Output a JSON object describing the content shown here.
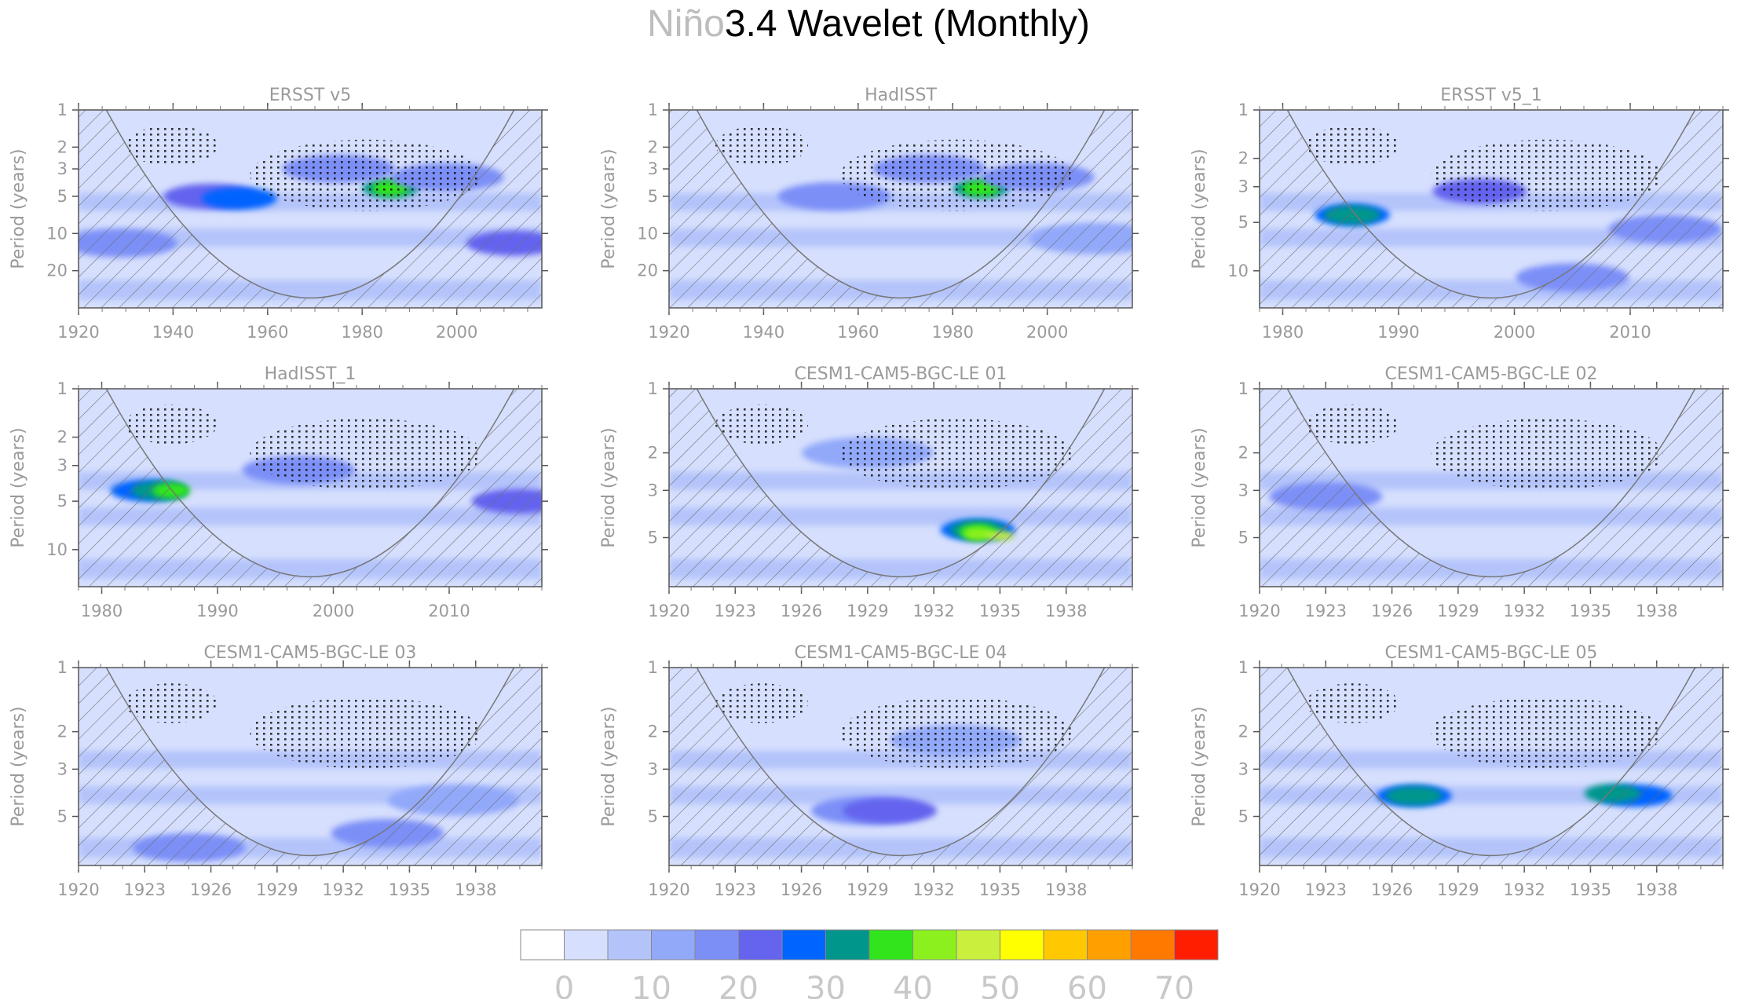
{
  "figure_title_part1": "Niño",
  "figure_title_part2": "3.4 Wavelet (Monthly)",
  "chart_data": [
    {
      "type": "heatmap",
      "title": "ERSST v5",
      "ylabel": "Period (years)",
      "xticks": [
        "1920",
        "1940",
        "1960",
        "1980",
        "2000"
      ],
      "yticks": [
        "1",
        "2",
        "3",
        "5",
        "10",
        "20"
      ],
      "xlim": [
        1920,
        2018
      ],
      "ylim": [
        1,
        40
      ],
      "yscale": "log",
      "blobs": [
        {
          "x": 1948,
          "p": 5,
          "level": 5
        },
        {
          "x": 1954,
          "p": 5.2,
          "level": 6
        },
        {
          "x": 1986,
          "p": 4.3,
          "level": 7
        },
        {
          "x": 1986,
          "p": 4.3,
          "level": 8
        },
        {
          "x": 1929,
          "p": 12,
          "level": 4
        },
        {
          "x": 2012,
          "p": 12,
          "level": 5
        },
        {
          "x": 1998,
          "p": 3.5,
          "level": 4
        },
        {
          "x": 1975,
          "p": 3,
          "level": 4
        }
      ]
    },
    {
      "type": "heatmap",
      "title": "HadISST",
      "ylabel": "Period (years)",
      "xticks": [
        "1920",
        "1940",
        "1960",
        "1980",
        "2000"
      ],
      "yticks": [
        "1",
        "2",
        "3",
        "5",
        "10",
        "20"
      ],
      "xlim": [
        1920,
        2018
      ],
      "ylim": [
        1,
        40
      ],
      "yscale": "log",
      "blobs": [
        {
          "x": 1955,
          "p": 5,
          "level": 4
        },
        {
          "x": 1986,
          "p": 4.3,
          "level": 7
        },
        {
          "x": 1986,
          "p": 4.3,
          "level": 8
        },
        {
          "x": 1998,
          "p": 3.5,
          "level": 4
        },
        {
          "x": 1975,
          "p": 3,
          "level": 4
        },
        {
          "x": 2010,
          "p": 11,
          "level": 3
        }
      ]
    },
    {
      "type": "heatmap",
      "title": "ERSST v5_1",
      "ylabel": "Period (years)",
      "xticks": [
        "1980",
        "1990",
        "2000",
        "2010"
      ],
      "yticks": [
        "1",
        "2",
        "3",
        "5",
        "10"
      ],
      "xlim": [
        1978,
        2018
      ],
      "ylim": [
        1,
        17
      ],
      "yscale": "log",
      "blobs": [
        {
          "x": 1986,
          "p": 4.5,
          "level": 6
        },
        {
          "x": 1986,
          "p": 4.5,
          "level": 7
        },
        {
          "x": 1997,
          "p": 3.2,
          "level": 5
        },
        {
          "x": 2005,
          "p": 11,
          "level": 4
        },
        {
          "x": 2013,
          "p": 5.5,
          "level": 4
        }
      ]
    },
    {
      "type": "heatmap",
      "title": "HadISST_1",
      "ylabel": "Period (years)",
      "xticks": [
        "1980",
        "1990",
        "2000",
        "2010"
      ],
      "yticks": [
        "1",
        "2",
        "3",
        "5",
        "10"
      ],
      "xlim": [
        1978,
        2018
      ],
      "ylim": [
        1,
        17
      ],
      "yscale": "log",
      "blobs": [
        {
          "x": 1984,
          "p": 4.3,
          "level": 6
        },
        {
          "x": 1985,
          "p": 4.3,
          "level": 7
        },
        {
          "x": 1986,
          "p": 4.3,
          "level": 8
        },
        {
          "x": 1997,
          "p": 3.2,
          "level": 4
        },
        {
          "x": 2016,
          "p": 5,
          "level": 5
        }
      ]
    },
    {
      "type": "heatmap",
      "title": "CESM1-CAM5-BGC-LE 01",
      "ylabel": "Period (years)",
      "xticks": [
        "1920",
        "1923",
        "1926",
        "1929",
        "1932",
        "1935",
        "1938"
      ],
      "yticks": [
        "1",
        "2",
        "3",
        "5"
      ],
      "xlim": [
        1920,
        1941
      ],
      "ylim": [
        1,
        8.5
      ],
      "yscale": "log",
      "blobs": [
        {
          "x": 1934,
          "p": 4.6,
          "level": 6
        },
        {
          "x": 1934,
          "p": 4.6,
          "level": 7
        },
        {
          "x": 1934,
          "p": 4.7,
          "level": 8
        },
        {
          "x": 1934,
          "p": 4.8,
          "level": 9
        },
        {
          "x": 1935,
          "p": 4.9,
          "level": 10
        },
        {
          "x": 1929,
          "p": 2,
          "level": 3
        }
      ]
    },
    {
      "type": "heatmap",
      "title": "CESM1-CAM5-BGC-LE 02",
      "ylabel": "Period (years)",
      "xticks": [
        "1920",
        "1923",
        "1926",
        "1929",
        "1932",
        "1935",
        "1938"
      ],
      "yticks": [
        "1",
        "2",
        "3",
        "5"
      ],
      "xlim": [
        1920,
        1941
      ],
      "ylim": [
        1,
        8.5
      ],
      "yscale": "log",
      "blobs": [
        {
          "x": 1923,
          "p": 3.2,
          "level": 4
        }
      ]
    },
    {
      "type": "heatmap",
      "title": "CESM1-CAM5-BGC-LE 03",
      "ylabel": "Period (years)",
      "xticks": [
        "1920",
        "1923",
        "1926",
        "1929",
        "1932",
        "1935",
        "1938"
      ],
      "yticks": [
        "1",
        "2",
        "3",
        "5"
      ],
      "xlim": [
        1920,
        1941
      ],
      "ylim": [
        1,
        8.5
      ],
      "yscale": "log",
      "blobs": [
        {
          "x": 1934,
          "p": 6,
          "level": 4
        },
        {
          "x": 1937,
          "p": 4.2,
          "level": 3
        },
        {
          "x": 1925,
          "p": 7,
          "level": 4
        }
      ]
    },
    {
      "type": "heatmap",
      "title": "CESM1-CAM5-BGC-LE 04",
      "ylabel": "Period (years)",
      "xticks": [
        "1920",
        "1923",
        "1926",
        "1929",
        "1932",
        "1935",
        "1938"
      ],
      "yticks": [
        "1",
        "2",
        "3",
        "5"
      ],
      "xlim": [
        1920,
        1941
      ],
      "ylim": [
        1,
        8.5
      ],
      "yscale": "log",
      "blobs": [
        {
          "x": 1929,
          "p": 4.7,
          "level": 4
        },
        {
          "x": 1930,
          "p": 4.7,
          "level": 5
        },
        {
          "x": 1933,
          "p": 2.2,
          "level": 3
        }
      ]
    },
    {
      "type": "heatmap",
      "title": "CESM1-CAM5-BGC-LE 05",
      "ylabel": "Period (years)",
      "xticks": [
        "1920",
        "1923",
        "1926",
        "1929",
        "1932",
        "1935",
        "1938"
      ],
      "yticks": [
        "1",
        "2",
        "3",
        "5"
      ],
      "xlim": [
        1920,
        1941
      ],
      "ylim": [
        1,
        8.5
      ],
      "yscale": "log",
      "blobs": [
        {
          "x": 1927,
          "p": 4,
          "level": 6
        },
        {
          "x": 1937,
          "p": 4,
          "level": 6
        },
        {
          "x": 1927,
          "p": 4,
          "level": 7
        },
        {
          "x": 1936,
          "p": 3.9,
          "level": 7
        }
      ]
    }
  ],
  "colorbar": {
    "colors": [
      "#ffffff",
      "#d6dffd",
      "#b4c4fb",
      "#92a9fa",
      "#7b8ff7",
      "#6464ef",
      "#0064ff",
      "#00968c",
      "#31e41b",
      "#8cf01e",
      "#c8f03c",
      "#ffff00",
      "#ffc800",
      "#ffa000",
      "#ff7800",
      "#ff1e00"
    ],
    "labels": [
      "0",
      "10",
      "20",
      "30",
      "40",
      "50",
      "60",
      "70"
    ]
  }
}
